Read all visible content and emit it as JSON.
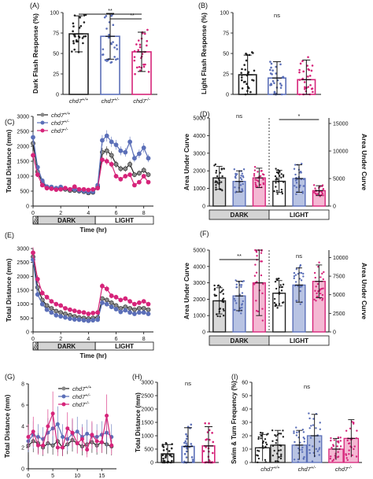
{
  "figure": {
    "colors": {
      "wt": "#222222",
      "het": "#5b6fb8",
      "het_fill": "#b8c3e3",
      "mut": "#d6247a",
      "mut_fill": "#f4b8d3",
      "ink": "#111111"
    },
    "genotypes": [
      "chd7",
      "chd7",
      "chd7"
    ],
    "genotype_sups": [
      "+/+",
      "+/-",
      "-/-"
    ],
    "dark_label": "DARK",
    "light_label": "LIGHT",
    "time_hr_label": "Time (hr)",
    "time_min_label": "Time (min)",
    "ns": "ns"
  },
  "chart_data": [
    {
      "panel": "(A)",
      "type": "bar",
      "ylabel": "Dark Flash Response (%)",
      "ylim": [
        0,
        100
      ],
      "yticks": [
        0,
        25,
        50,
        75,
        100
      ],
      "categories": [
        "chd7+/+",
        "chd7+/-",
        "chd7-/-"
      ],
      "values": [
        74,
        71,
        52
      ],
      "errors": [
        22,
        28,
        24
      ],
      "significance": [
        {
          "pair": [
            0,
            2
          ],
          "label": "**"
        },
        {
          "pair": [
            1,
            2
          ],
          "label": "**"
        }
      ]
    },
    {
      "panel": "(B)",
      "type": "bar",
      "ylabel": "Light Flash Response (%)",
      "ylim": [
        0,
        100
      ],
      "yticks": [
        0,
        25,
        50,
        75,
        100
      ],
      "categories": [
        "chd7+/+",
        "chd7+/-",
        "chd7-/-"
      ],
      "values": [
        24,
        20,
        18
      ],
      "errors": [
        24,
        20,
        24
      ],
      "significance": [
        {
          "label": "ns"
        }
      ]
    },
    {
      "panel": "(C)",
      "type": "line",
      "ylabel": "Total Distance (mm)",
      "xlabel": "Time (hr)",
      "xlim": [
        0,
        8.7
      ],
      "ylim": [
        0,
        3000
      ],
      "xticks": [
        0,
        2,
        4,
        6,
        8
      ],
      "yticks": [
        0,
        500,
        1000,
        1500,
        2000,
        2500,
        3000
      ],
      "x": [
        0,
        0.33,
        0.67,
        1,
        1.33,
        1.67,
        2,
        2.33,
        2.67,
        3,
        3.33,
        3.67,
        4,
        4.33,
        4.67,
        5,
        5.33,
        5.67,
        6,
        6.33,
        6.67,
        7,
        7.33,
        7.67,
        8,
        8.33
      ],
      "series": [
        {
          "name": "chd7+/+",
          "values": [
            2100,
            1150,
            800,
            620,
            620,
            580,
            600,
            560,
            520,
            520,
            500,
            480,
            440,
            460,
            650,
            1800,
            1850,
            1700,
            1400,
            1250,
            1250,
            1400,
            1050,
            1100,
            1200,
            1050
          ]
        },
        {
          "name": "chd7+/-",
          "values": [
            2300,
            1300,
            850,
            650,
            640,
            600,
            640,
            590,
            560,
            560,
            520,
            500,
            470,
            480,
            700,
            2200,
            2350,
            2150,
            2050,
            1850,
            1800,
            2150,
            1600,
            1750,
            1950,
            1600
          ]
        },
        {
          "name": "chd7-/-",
          "values": [
            1700,
            1050,
            700,
            600,
            580,
            550,
            560,
            600,
            560,
            650,
            560,
            560,
            540,
            560,
            600,
            1550,
            1500,
            1400,
            1000,
            900,
            1000,
            1050,
            700,
            800,
            1000,
            800
          ]
        }
      ]
    },
    {
      "panel": "(D)",
      "type": "bar",
      "ylabel": "Area Under Curve",
      "ylabel_right": "Area Under Curve",
      "ylim": [
        0,
        5000
      ],
      "yticks": [
        0,
        1000,
        2000,
        3000,
        4000,
        5000
      ],
      "ylim_right": [
        0,
        16000
      ],
      "yticks_right": [
        0,
        5000,
        10000,
        15000
      ],
      "categories": [
        "DARK chd7+/+",
        "DARK chd7+/-",
        "DARK chd7-/-",
        "LIGHT chd7+/+",
        "LIGHT chd7+/-",
        "LIGHT chd7-/-"
      ],
      "axis": [
        "left",
        "left",
        "left",
        "right",
        "right",
        "right"
      ],
      "values": [
        1600,
        1400,
        1600,
        4500,
        5000,
        2800
      ],
      "errors": [
        650,
        600,
        550,
        2000,
        2500,
        900
      ],
      "significance": [
        {
          "label": "ns"
        },
        {
          "pair": [
            3,
            5
          ],
          "label": "*"
        }
      ]
    },
    {
      "panel": "(E)",
      "type": "line",
      "ylabel": "Total Distance (mm)",
      "xlabel": "Time (hr)",
      "xlim": [
        0,
        8.7
      ],
      "ylim": [
        0,
        3000
      ],
      "xticks": [
        0,
        2,
        4,
        6,
        8
      ],
      "yticks": [
        0,
        500,
        1000,
        1500,
        2000,
        2500,
        3000
      ],
      "x": [
        0,
        0.33,
        0.67,
        1,
        1.33,
        1.67,
        2,
        2.33,
        2.67,
        3,
        3.33,
        3.67,
        4,
        4.33,
        4.67,
        5,
        5.33,
        5.67,
        6,
        6.33,
        6.67,
        7,
        7.33,
        7.67,
        8,
        8.33
      ],
      "series": [
        {
          "name": "chd7+/+",
          "values": [
            2700,
            1600,
            1150,
            950,
            850,
            750,
            700,
            650,
            600,
            560,
            520,
            500,
            480,
            500,
            520,
            1200,
            1150,
            1050,
            950,
            850,
            900,
            850,
            800,
            850,
            850,
            800
          ]
        },
        {
          "name": "chd7+/-",
          "values": [
            2600,
            1350,
            1000,
            800,
            700,
            600,
            560,
            520,
            480,
            450,
            440,
            420,
            400,
            420,
            440,
            1050,
            1000,
            900,
            820,
            720,
            780,
            700,
            650,
            700,
            700,
            650
          ]
        },
        {
          "name": "chd7-/-",
          "values": [
            2850,
            1900,
            1400,
            1250,
            1100,
            1000,
            950,
            850,
            800,
            760,
            720,
            700,
            650,
            680,
            700,
            1650,
            1550,
            1300,
            1250,
            1150,
            1200,
            1100,
            1000,
            1050,
            1100,
            1000
          ]
        }
      ]
    },
    {
      "panel": "(F)",
      "type": "bar",
      "ylabel": "Area Under Curve",
      "ylabel_right": "Area Under Curve",
      "ylim": [
        0,
        5000
      ],
      "yticks": [
        0,
        1000,
        2000,
        3000,
        4000,
        5000
      ],
      "ylim_right": [
        0,
        11000
      ],
      "yticks_right": [
        0,
        2500,
        5000,
        7500,
        10000
      ],
      "categories": [
        "DARK chd7+/+",
        "DARK chd7+/-",
        "DARK chd7-/-",
        "LIGHT chd7+/+",
        "LIGHT chd7+/-",
        "LIGHT chd7-/-"
      ],
      "axis": [
        "left",
        "left",
        "left",
        "right",
        "right",
        "right"
      ],
      "values": [
        1900,
        2200,
        3000,
        5200,
        6300,
        6800
      ],
      "errors": [
        800,
        900,
        2000,
        1700,
        2300,
        2200
      ],
      "significance": [
        {
          "pair": [
            0,
            2
          ],
          "label": "**"
        },
        {
          "label": "ns"
        }
      ]
    },
    {
      "panel": "(G)",
      "type": "line",
      "ylabel": "Total Distance (mm)",
      "xlabel": "Time (min)",
      "xlim": [
        0,
        18
      ],
      "ylim": [
        0,
        8
      ],
      "xticks": [
        0,
        5,
        10,
        15
      ],
      "yticks": [
        0,
        2,
        4,
        6,
        8
      ],
      "x": [
        0,
        1,
        2,
        3,
        4,
        5,
        6,
        7,
        8,
        9,
        10,
        11,
        12,
        13,
        14,
        15,
        16,
        17
      ],
      "series": [
        {
          "name": "chd7+/+",
          "values": [
            2.2,
            2.6,
            2.4,
            2.0,
            2.4,
            2.2,
            2.6,
            2.0,
            2.3,
            2.7,
            2.4,
            2.1,
            2.3,
            2.5,
            2.2,
            2.5,
            2.3,
            2.1
          ]
        },
        {
          "name": "chd7+/-",
          "values": [
            2.6,
            3.2,
            3.0,
            2.8,
            3.4,
            3.8,
            4.2,
            3.0,
            2.8,
            3.3,
            3.5,
            3.0,
            3.3,
            3.1,
            3.0,
            3.2,
            3.4,
            3.0
          ]
        },
        {
          "name": "chd7-/-",
          "values": [
            3.0,
            3.5,
            2.2,
            2.2,
            4.0,
            5.2,
            2.0,
            2.0,
            3.8,
            3.4,
            2.4,
            2.8,
            1.8,
            3.2,
            2.6,
            2.5,
            5.0,
            2.2
          ]
        }
      ]
    },
    {
      "panel": "(H)",
      "type": "bar",
      "ylabel": "Total Distance (mm)",
      "ylim": [
        0,
        3000
      ],
      "yticks": [
        0,
        500,
        1000,
        1500,
        2000,
        2500,
        3000
      ],
      "categories": [
        "chd7+/+",
        "chd7+/-",
        "chd7-/-"
      ],
      "values": [
        320,
        600,
        620
      ],
      "errors": [
        350,
        700,
        720
      ],
      "significance": [
        {
          "label": "ns"
        }
      ]
    },
    {
      "panel": "(I)",
      "type": "bar",
      "ylabel": "Swim & Turn Frequency (%)",
      "ylim": [
        0,
        60
      ],
      "yticks": [
        0,
        10,
        20,
        30,
        40,
        50,
        60
      ],
      "categories": [
        "chd7+/+ swim",
        "chd7+/+ turn",
        "chd7+/- swim",
        "chd7+/- turn",
        "chd7-/- swim",
        "chd7-/- turn"
      ],
      "values": [
        11,
        13,
        13,
        20,
        10,
        18
      ],
      "errors": [
        10,
        11,
        11,
        16,
        8,
        14
      ],
      "significance": [
        {
          "label": "ns"
        }
      ]
    }
  ]
}
